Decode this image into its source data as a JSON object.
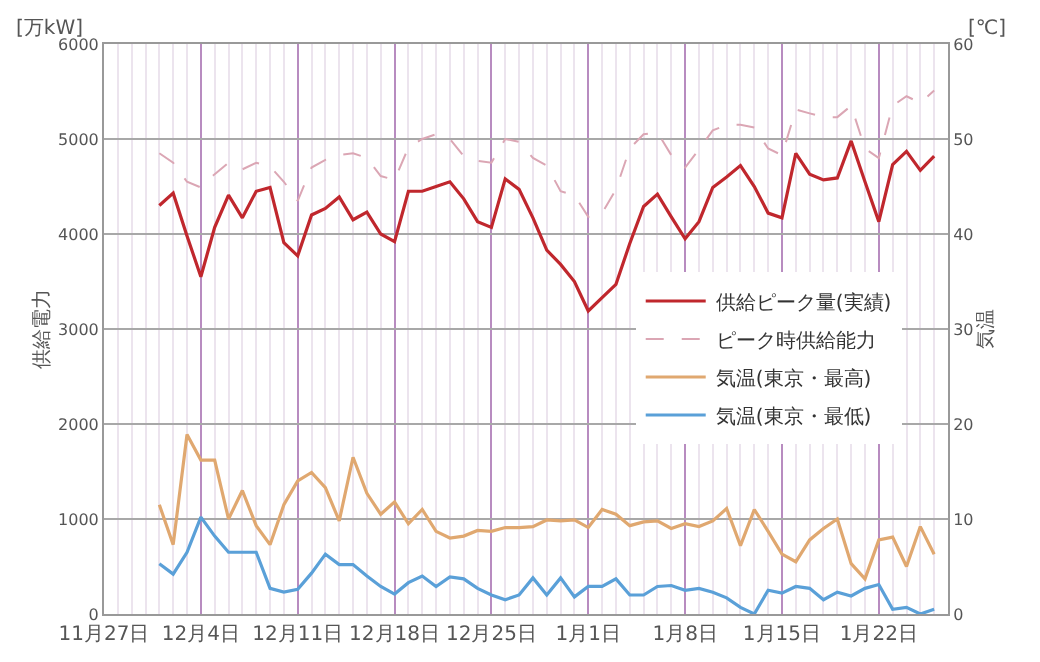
{
  "chart_data": {
    "type": "line",
    "ylabel": "供給電力",
    "y2label": "気温",
    "annotations": [
      "[万kW]",
      "[℃]"
    ],
    "categories": [
      "11月27日",
      null,
      null,
      null,
      null,
      null,
      null,
      "12月4日",
      null,
      null,
      null,
      null,
      null,
      null,
      "12月11日",
      null,
      null,
      null,
      null,
      null,
      null,
      "12月18日",
      null,
      null,
      null,
      null,
      null,
      null,
      "12月25日",
      null,
      null,
      null,
      null,
      null,
      null,
      "1月1日",
      null,
      null,
      null,
      null,
      null,
      null,
      "1月8日",
      null,
      null,
      null,
      null,
      null,
      null,
      "1月15日",
      null,
      null,
      null,
      null,
      null,
      null,
      "1月22日",
      null,
      null,
      null,
      null,
      null
    ],
    "series": [
      {
        "name": "供給ピーク量(実績)",
        "color": "#c0272d",
        "values": [
          null,
          null,
          null,
          null,
          4300,
          4430,
          3980,
          3550,
          4070,
          4410,
          4170,
          4450,
          4490,
          3910,
          3770,
          4200,
          4270,
          4390,
          4150,
          4230,
          4000,
          3920,
          4450,
          4450,
          4500,
          4550,
          4370,
          4130,
          4070,
          4580,
          4470,
          4170,
          3830,
          3680,
          3500,
          3190,
          3330,
          3470,
          3900,
          4290,
          4420,
          4180,
          3950,
          4130,
          4490,
          4600,
          4720,
          4500,
          4220,
          4170,
          4850,
          4630,
          4570,
          4590,
          4980,
          4550,
          4130,
          4730,
          4870,
          4670,
          4820,
          null
        ]
      },
      {
        "name": "ピーク時供給能力",
        "color": "#dba6b4",
        "line_style": "dashed",
        "values": [
          null,
          null,
          null,
          null,
          4850,
          4750,
          4550,
          4490,
          4630,
          4750,
          4680,
          4750,
          4710,
          4550,
          4350,
          4700,
          4780,
          4830,
          4850,
          4800,
          4610,
          4570,
          4910,
          5000,
          5050,
          5000,
          4820,
          4770,
          4750,
          5000,
          4970,
          4800,
          4720,
          4450,
          4410,
          4180,
          4220,
          4470,
          4900,
          5050,
          5070,
          4830,
          4700,
          4890,
          5090,
          5150,
          5150,
          5120,
          4900,
          4830,
          5310,
          5270,
          5230,
          5230,
          5350,
          4900,
          4800,
          5350,
          5450,
          5380,
          5510,
          null
        ]
      },
      {
        "name": "気温(東京・最高)",
        "color": "#e0a870",
        "axis": "y2",
        "values": [
          null,
          null,
          null,
          null,
          11.5,
          7.3,
          18.9,
          16.2,
          16.2,
          10,
          13,
          9.3,
          7.3,
          11.5,
          14,
          14.9,
          13.3,
          9.8,
          16.5,
          12.7,
          10.5,
          11.8,
          9.5,
          11,
          8.7,
          8,
          8.2,
          8.8,
          8.7,
          9.1,
          9.1,
          9.2,
          9.9,
          9.8,
          9.9,
          9.1,
          11,
          10.5,
          9.3,
          9.7,
          9.8,
          9,
          9.5,
          9.2,
          9.8,
          11.1,
          7.2,
          11,
          8.7,
          6.3,
          5.5,
          7.8,
          9,
          10,
          5.3,
          3.7,
          7.8,
          8.1,
          5,
          9.2,
          6.3,
          null
        ]
      },
      {
        "name": "気温(東京・最低)",
        "color": "#5aa0d8",
        "axis": "y2",
        "values": [
          null,
          null,
          null,
          null,
          5.3,
          4.2,
          6.5,
          10.2,
          8.2,
          6.5,
          6.5,
          6.5,
          2.7,
          2.3,
          2.6,
          4.3,
          6.3,
          5.2,
          5.2,
          4,
          2.9,
          2.1,
          3.3,
          4,
          2.9,
          3.9,
          3.7,
          2.7,
          2,
          1.5,
          2,
          3.8,
          2,
          3.8,
          1.8,
          2.9,
          2.9,
          3.7,
          2,
          2,
          2.9,
          3,
          2.5,
          2.7,
          2.3,
          1.7,
          0.7,
          0,
          2.5,
          2.2,
          2.9,
          2.7,
          1.5,
          2.3,
          1.9,
          2.7,
          3.1,
          0.5,
          0.7,
          0,
          0.5,
          null
        ]
      }
    ],
    "ylim": [
      0,
      6000
    ],
    "yticks": [
      0,
      1000,
      2000,
      3000,
      4000,
      5000,
      6000
    ],
    "y2lim": [
      0,
      60
    ],
    "y2ticks": [
      0,
      10,
      20,
      30,
      40,
      50,
      60
    ],
    "grid": true,
    "legend": "right",
    "marker": "none"
  }
}
